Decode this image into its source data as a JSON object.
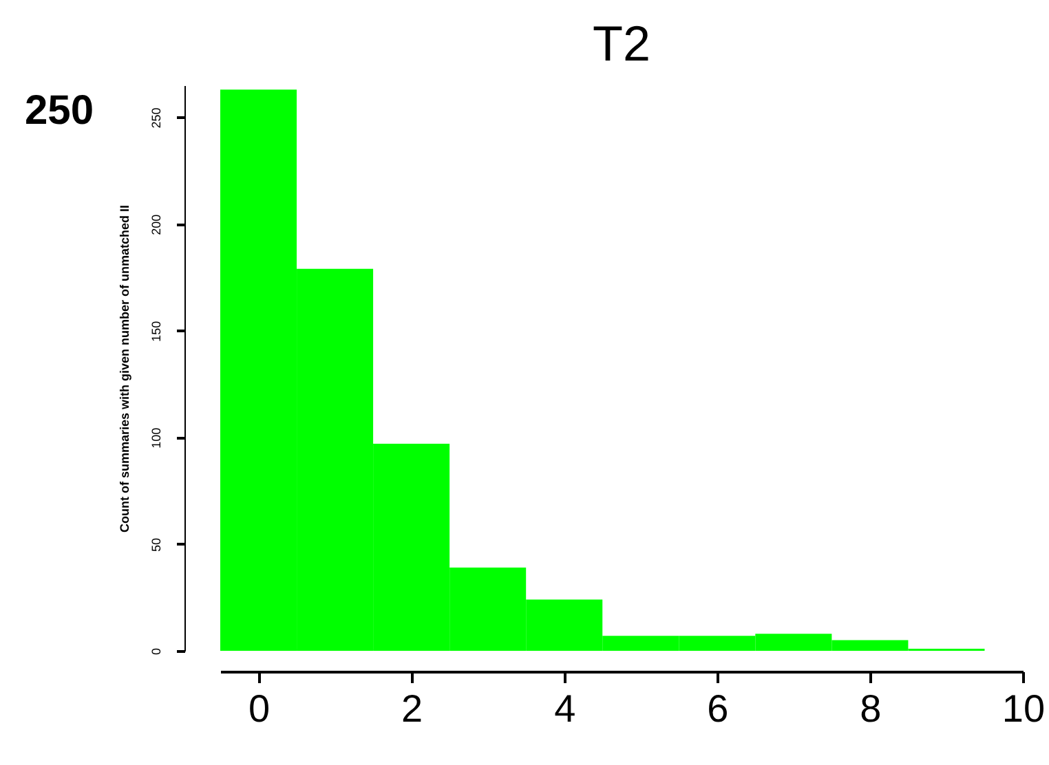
{
  "chart_data": {
    "type": "histogram",
    "title": "T2",
    "ylabel": "Count of summaries with given number of unmatched II",
    "bins": [
      -0.5,
      0.5,
      1.5,
      2.5,
      3.5,
      4.5,
      5.5,
      6.5,
      7.5,
      8.5,
      9.5
    ],
    "values": [
      263,
      179,
      97,
      39,
      24,
      7,
      7,
      8,
      5,
      1
    ],
    "color": "#00ff00",
    "xlim": [
      -0.5,
      10
    ],
    "xticks": [
      0,
      2,
      4,
      6,
      8,
      10
    ],
    "ylim": [
      0,
      265
    ],
    "yticks": [
      0,
      50,
      100,
      150,
      200,
      250
    ],
    "grid": false,
    "annotations": [
      "250"
    ]
  }
}
